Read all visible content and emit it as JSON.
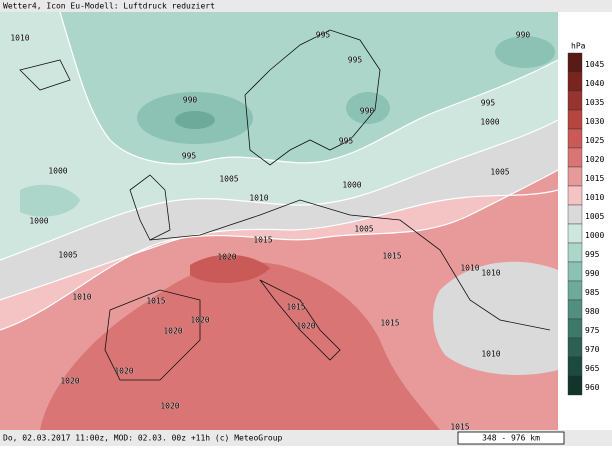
{
  "header": {
    "title": "Wetter4, Icon Eu-Modell: Luftdruck reduziert"
  },
  "legend": {
    "unit": "hPa",
    "levels": [
      "1045",
      "1040",
      "1035",
      "1030",
      "1025",
      "1020",
      "1015",
      "1010",
      "1005",
      "1000",
      "995",
      "990",
      "985",
      "980",
      "975",
      "970",
      "965",
      "960"
    ],
    "colors": [
      "#5a1a16",
      "#7a2420",
      "#983430",
      "#b54541",
      "#c95a58",
      "#d97574",
      "#e89a9a",
      "#f4c4c4",
      "#dadada",
      "#cfe6de",
      "#acd6c9",
      "#8cc2b3",
      "#6eaa9a",
      "#528f80",
      "#3d7868",
      "#2b6152",
      "#1d4a3e",
      "#11352b"
    ]
  },
  "map": {
    "labels": [
      "1010",
      "995",
      "995",
      "990",
      "990",
      "990",
      "995",
      "1000",
      "995",
      "995",
      "1000",
      "1005",
      "1000",
      "1005",
      "1000",
      "1010",
      "1005",
      "1005",
      "1015",
      "1015",
      "1020",
      "1010",
      "1010",
      "1010",
      "1015",
      "1015",
      "1015",
      "1020",
      "1020",
      "1020",
      "1010",
      "1020",
      "1020",
      "1020",
      "1015"
    ]
  },
  "footer": {
    "text": "Do, 02.03.2017 11:00z, MOD: 02.03. 00z +11h (c) MeteoGroup",
    "scale": "348 - 976 km"
  }
}
